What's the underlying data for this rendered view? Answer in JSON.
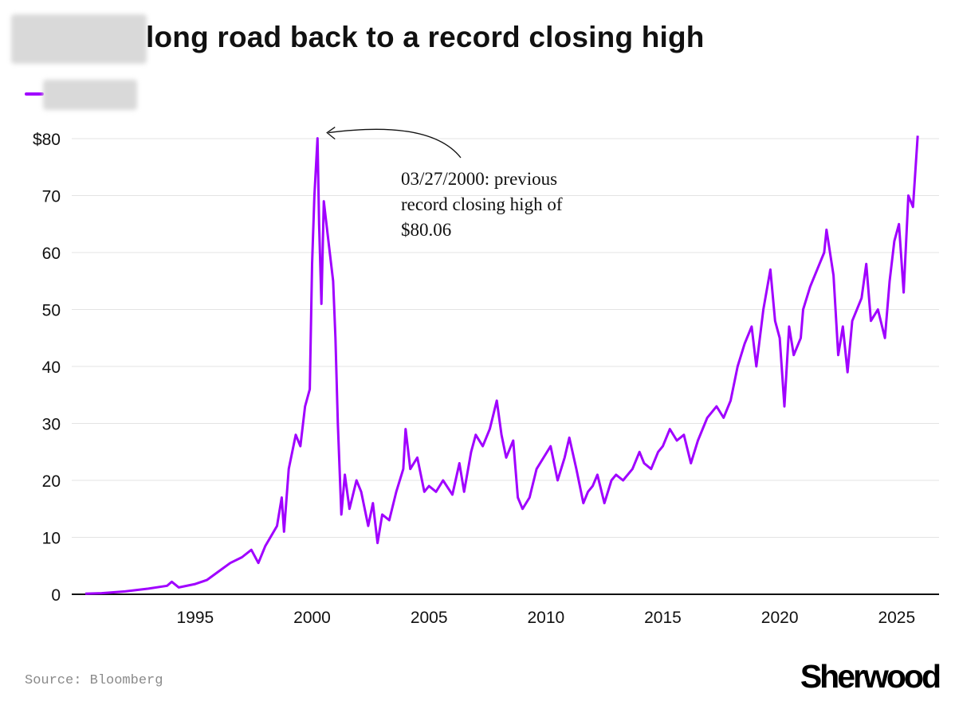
{
  "title": "long road back to a record closing high",
  "source": "Source: Bloomberg",
  "logo": "Sherwood",
  "colors": {
    "line": "#a000ff",
    "grid": "#e3e3e3",
    "axis": "#111111"
  },
  "chart_data": {
    "type": "line",
    "title": "long road back to a record closing high",
    "xlabel": "",
    "ylabel": "",
    "xlim": [
      1990.3,
      2026.2
    ],
    "ylim": [
      0,
      80
    ],
    "grid": true,
    "x_ticks": [
      1995,
      2000,
      2005,
      2010,
      2015,
      2020,
      2025
    ],
    "x_tick_labels": [
      "1995",
      "2000",
      "2005",
      "2010",
      "2015",
      "2020",
      "2025"
    ],
    "y_ticks": [
      0,
      10,
      20,
      30,
      40,
      50,
      60,
      70,
      80
    ],
    "y_tick_labels": [
      "0",
      "10",
      "20",
      "30",
      "40",
      "50",
      "60",
      "70",
      "$80"
    ],
    "annotation": {
      "lines": [
        "03/27/2000: previous",
        "record closing high of",
        "$80.06"
      ],
      "x": 2000.23,
      "y": 80.06
    },
    "series": [
      {
        "x": [
          1990.3,
          1991,
          1992,
          1993,
          1993.8,
          1994.0,
          1994.3,
          1995,
          1995.5,
          1996,
          1996.5,
          1997,
          1997.4,
          1997.7,
          1998,
          1998.5,
          1998.7,
          1998.8,
          1999,
          1999.3,
          1999.5,
          1999.7,
          1999.9,
          2000.0,
          2000.1,
          2000.23,
          2000.3,
          2000.4,
          2000.5,
          2000.7,
          2000.9,
          2001.0,
          2001.1,
          2001.25,
          2001.4,
          2001.6,
          2001.9,
          2002.1,
          2002.4,
          2002.6,
          2002.8,
          2003.0,
          2003.3,
          2003.6,
          2003.9,
          2004.0,
          2004.2,
          2004.5,
          2004.8,
          2005.0,
          2005.3,
          2005.6,
          2006.0,
          2006.3,
          2006.5,
          2006.8,
          2007.0,
          2007.3,
          2007.6,
          2007.9,
          2008.1,
          2008.3,
          2008.6,
          2008.8,
          2009.0,
          2009.3,
          2009.6,
          2009.9,
          2010.2,
          2010.5,
          2010.8,
          2011.0,
          2011.3,
          2011.6,
          2011.8,
          2012.0,
          2012.2,
          2012.5,
          2012.8,
          2013.0,
          2013.3,
          2013.7,
          2014.0,
          2014.2,
          2014.5,
          2014.8,
          2015.0,
          2015.3,
          2015.6,
          2015.9,
          2016.2,
          2016.5,
          2016.9,
          2017.3,
          2017.6,
          2017.9,
          2018.2,
          2018.5,
          2018.8,
          2019.0,
          2019.3,
          2019.6,
          2019.8,
          2020.0,
          2020.2,
          2020.4,
          2020.6,
          2020.9,
          2021.0,
          2021.3,
          2021.6,
          2021.9,
          2022.0,
          2022.3,
          2022.5,
          2022.7,
          2022.9,
          2023.1,
          2023.5,
          2023.7,
          2023.9,
          2024.2,
          2024.5,
          2024.7,
          2024.9,
          2025.1,
          2025.3,
          2025.5,
          2025.7,
          2025.9
        ],
        "values": [
          0.1,
          0.2,
          0.5,
          1.0,
          1.5,
          2.2,
          1.2,
          1.8,
          2.5,
          4,
          5.5,
          6.5,
          7.8,
          5.5,
          8.5,
          12,
          17,
          11,
          22,
          28,
          26,
          33,
          36,
          58,
          70,
          80.06,
          65,
          51,
          69,
          62,
          55,
          45,
          30,
          14,
          21,
          15,
          20,
          18,
          12,
          16,
          9,
          14,
          13,
          18,
          22,
          29,
          22,
          24,
          18,
          19,
          18,
          20,
          17.5,
          23,
          18,
          25,
          28,
          26,
          29,
          34,
          28,
          24,
          27,
          17,
          15,
          17,
          22,
          24,
          26,
          20,
          24,
          27.5,
          22,
          16,
          18,
          19,
          21,
          16,
          20,
          21,
          20,
          22,
          25,
          23,
          22,
          25,
          26,
          29,
          27,
          28,
          23,
          27,
          31,
          33,
          31,
          34,
          40,
          44,
          47,
          40,
          50,
          57,
          48,
          45,
          33,
          47,
          42,
          45,
          50,
          54,
          57,
          60,
          64,
          56,
          42,
          47,
          39,
          48,
          52,
          58,
          48,
          50,
          45,
          55,
          62,
          65,
          53,
          70,
          68,
          80.5
        ]
      }
    ]
  }
}
